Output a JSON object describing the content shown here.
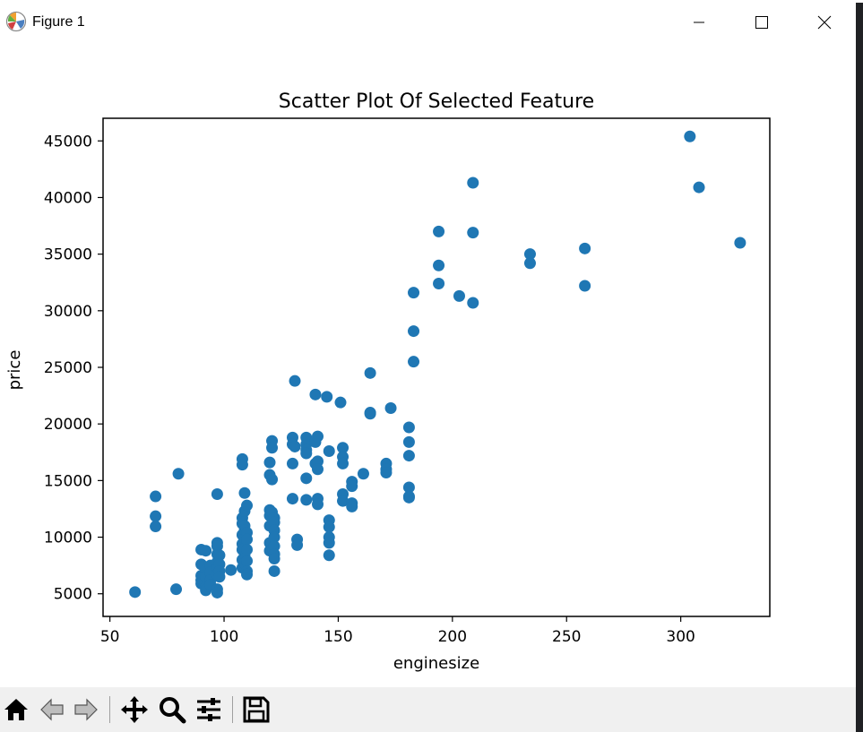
{
  "window": {
    "title": "Figure 1"
  },
  "chart_data": {
    "type": "scatter",
    "title": "Scatter Plot Of Selected Feature",
    "xlabel": "enginesize",
    "ylabel": "price",
    "xlim": [
      47,
      339
    ],
    "ylim": [
      3000,
      47000
    ],
    "xticks": [
      50,
      100,
      150,
      200,
      250,
      300
    ],
    "yticks": [
      5000,
      10000,
      15000,
      20000,
      25000,
      30000,
      35000,
      40000,
      45000
    ],
    "grid": false,
    "marker_color": "#1f77b4",
    "points": [
      [
        61,
        5150
      ],
      [
        70,
        13600
      ],
      [
        70,
        11850
      ],
      [
        70,
        10950
      ],
      [
        79,
        5400
      ],
      [
        80,
        15600
      ],
      [
        90,
        8900
      ],
      [
        90,
        7600
      ],
      [
        90,
        6600
      ],
      [
        90,
        6200
      ],
      [
        90,
        5900
      ],
      [
        92,
        8800
      ],
      [
        92,
        7100
      ],
      [
        92,
        6500
      ],
      [
        92,
        5600
      ],
      [
        92,
        5300
      ],
      [
        94,
        7500
      ],
      [
        94,
        6900
      ],
      [
        94,
        6200
      ],
      [
        94,
        5800
      ],
      [
        97,
        13800
      ],
      [
        97,
        9500
      ],
      [
        97,
        9200
      ],
      [
        97,
        8500
      ],
      [
        97,
        7800
      ],
      [
        97,
        7200
      ],
      [
        97,
        6700
      ],
      [
        97,
        5400
      ],
      [
        97,
        5100
      ],
      [
        98,
        8400
      ],
      [
        98,
        7600
      ],
      [
        98,
        7000
      ],
      [
        98,
        6500
      ],
      [
        103,
        7100
      ],
      [
        108,
        16900
      ],
      [
        108,
        16400
      ],
      [
        108,
        11700
      ],
      [
        108,
        11200
      ],
      [
        108,
        10200
      ],
      [
        108,
        9400
      ],
      [
        108,
        8900
      ],
      [
        108,
        8000
      ],
      [
        108,
        7300
      ],
      [
        109,
        13900
      ],
      [
        109,
        12300
      ],
      [
        109,
        11000
      ],
      [
        109,
        10600
      ],
      [
        109,
        9900
      ],
      [
        109,
        9000
      ],
      [
        109,
        8400
      ],
      [
        109,
        7700
      ],
      [
        110,
        12800
      ],
      [
        110,
        10400
      ],
      [
        110,
        9800
      ],
      [
        110,
        8900
      ],
      [
        110,
        7900
      ],
      [
        110,
        7000
      ],
      [
        110,
        6700
      ],
      [
        120,
        16600
      ],
      [
        120,
        15500
      ],
      [
        120,
        12400
      ],
      [
        120,
        11900
      ],
      [
        120,
        11000
      ],
      [
        120,
        9500
      ],
      [
        120,
        8800
      ],
      [
        121,
        18500
      ],
      [
        121,
        17900
      ],
      [
        121,
        15100
      ],
      [
        121,
        12200
      ],
      [
        122,
        11700
      ],
      [
        122,
        11300
      ],
      [
        122,
        10600
      ],
      [
        122,
        10000
      ],
      [
        122,
        9200
      ],
      [
        122,
        8500
      ],
      [
        122,
        8100
      ],
      [
        122,
        7000
      ],
      [
        130,
        18800
      ],
      [
        130,
        18200
      ],
      [
        130,
        16500
      ],
      [
        130,
        13400
      ],
      [
        131,
        23800
      ],
      [
        131,
        18000
      ],
      [
        132,
        9800
      ],
      [
        132,
        9300
      ],
      [
        136,
        18800
      ],
      [
        136,
        18200
      ],
      [
        136,
        17700
      ],
      [
        136,
        17400
      ],
      [
        136,
        15200
      ],
      [
        136,
        13300
      ],
      [
        140,
        22600
      ],
      [
        140,
        18400
      ],
      [
        140,
        16500
      ],
      [
        141,
        18900
      ],
      [
        141,
        16700
      ],
      [
        141,
        16000
      ],
      [
        141,
        13400
      ],
      [
        141,
        12900
      ],
      [
        145,
        22400
      ],
      [
        146,
        17600
      ],
      [
        146,
        11500
      ],
      [
        146,
        10900
      ],
      [
        146,
        10000
      ],
      [
        146,
        9500
      ],
      [
        146,
        8400
      ],
      [
        151,
        21900
      ],
      [
        152,
        17900
      ],
      [
        152,
        17100
      ],
      [
        152,
        16500
      ],
      [
        152,
        13800
      ],
      [
        152,
        13200
      ],
      [
        156,
        14900
      ],
      [
        156,
        14500
      ],
      [
        156,
        13000
      ],
      [
        156,
        12700
      ],
      [
        161,
        15600
      ],
      [
        164,
        24500
      ],
      [
        164,
        21000
      ],
      [
        164,
        20900
      ],
      [
        171,
        16500
      ],
      [
        171,
        16000
      ],
      [
        171,
        15700
      ],
      [
        173,
        21400
      ],
      [
        181,
        19700
      ],
      [
        181,
        18400
      ],
      [
        181,
        17200
      ],
      [
        181,
        14400
      ],
      [
        181,
        13600
      ],
      [
        181,
        13500
      ],
      [
        183,
        31600
      ],
      [
        183,
        28200
      ],
      [
        183,
        25500
      ],
      [
        194,
        37000
      ],
      [
        194,
        34000
      ],
      [
        194,
        32400
      ],
      [
        203,
        31300
      ],
      [
        209,
        41300
      ],
      [
        209,
        36900
      ],
      [
        209,
        30700
      ],
      [
        234,
        35000
      ],
      [
        234,
        34200
      ],
      [
        258,
        35500
      ],
      [
        258,
        32200
      ],
      [
        304,
        45400
      ],
      [
        308,
        40900
      ],
      [
        326,
        36000
      ]
    ]
  }
}
